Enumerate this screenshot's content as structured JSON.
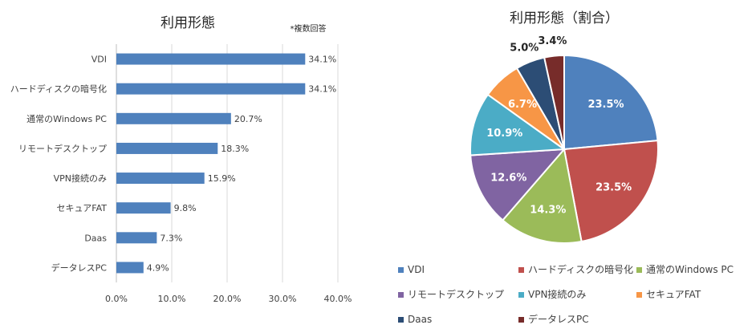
{
  "chart_data": [
    {
      "type": "bar",
      "orientation": "horizontal",
      "title": "利用形態",
      "note": "*複数回答",
      "categories": [
        "VDI",
        "ハードディスクの暗号化",
        "通常のWindows PC",
        "リモートデスクトップ",
        "VPN接続のみ",
        "セキュアFAT",
        "Daas",
        "データレスPC"
      ],
      "values": [
        34.1,
        34.1,
        20.7,
        18.3,
        15.9,
        9.8,
        7.3,
        4.9
      ],
      "value_labels": [
        "34.1%",
        "34.1%",
        "20.7%",
        "18.3%",
        "15.9%",
        "9.8%",
        "7.3%",
        "4.9%"
      ],
      "xlim": [
        0,
        40
      ],
      "xticks": [
        0,
        10,
        20,
        30,
        40
      ],
      "xtick_labels": [
        "0.0%",
        "10.0%",
        "20.0%",
        "30.0%",
        "40.0%"
      ],
      "gridlines": "vertical",
      "legend": "none",
      "bar_color": "#4f81bd"
    },
    {
      "type": "pie",
      "title": "利用形態（割合）",
      "categories": [
        "VDI",
        "ハードディスクの暗号化",
        "通常のWindows PC",
        "リモートデスクトップ",
        "VPN接続のみ",
        "セキュアFAT",
        "Daas",
        "データレスPC"
      ],
      "values": [
        23.5,
        23.5,
        14.3,
        12.6,
        10.9,
        6.7,
        5.0,
        3.4
      ],
      "value_labels": [
        "23.5%",
        "23.5%",
        "14.3%",
        "12.6%",
        "10.9%",
        "6.7%",
        "5.0%",
        "3.4%"
      ],
      "colors": [
        "#4f81bd",
        "#c0504d",
        "#9bbb59",
        "#8064a2",
        "#4bacc6",
        "#f79646",
        "#2c4d75",
        "#772c2a"
      ],
      "legend": "bottom"
    }
  ]
}
